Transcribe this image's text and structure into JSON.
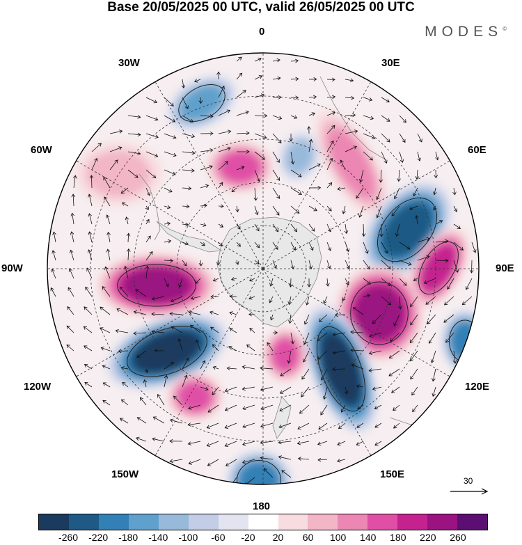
{
  "title": "Base 20/05/2025 00 UTC, valid 26/05/2025 00 UTC",
  "logo": "MODES",
  "logo_mark": "©",
  "longitude_labels": {
    "lon_0": "0",
    "lon_30e": "30E",
    "lon_60e": "60E",
    "lon_90e": "90E",
    "lon_120e": "120E",
    "lon_150e": "150E",
    "lon_180": "180",
    "lon_150w": "150W",
    "lon_120w": "120W",
    "lon_90w": "90W",
    "lon_60w": "60W",
    "lon_30w": "30W"
  },
  "reference_vector": {
    "value": "30"
  },
  "colorbar": {
    "ticks": [
      "-260",
      "-220",
      "-180",
      "-140",
      "-100",
      "-60",
      "-20",
      "20",
      "60",
      "100",
      "140",
      "180",
      "220",
      "260"
    ],
    "colors": [
      "#1b3b5e",
      "#1e5a85",
      "#3280b5",
      "#5fa0cc",
      "#97b9da",
      "#c3cde6",
      "#e4e4f1",
      "#ffffff",
      "#f8dde0",
      "#f2b6c6",
      "#ec86b3",
      "#e04fa6",
      "#c4238f",
      "#9a1380",
      "#5c0f72"
    ]
  },
  "chart_data": {
    "type": "map",
    "projection": "south polar stereographic",
    "fields": [
      "shaded anomaly (color scale)",
      "wind vectors (reference arrow 30)"
    ],
    "anomaly_centres": [
      {
        "near": "30W",
        "sign": "negative",
        "value": -140
      },
      {
        "near": "0",
        "sign": "positive",
        "value": 120
      },
      {
        "near": "15E",
        "sign": "negative",
        "value": -80
      },
      {
        "near": "30E-45E",
        "sign": "positive",
        "value": 80
      },
      {
        "near": "60E-75E",
        "sign": "negative",
        "value": -220
      },
      {
        "near": "90E",
        "sign": "positive",
        "value": 180
      },
      {
        "near": "105E-120E",
        "sign": "positive",
        "value": 220
      },
      {
        "near": "130E-140E",
        "sign": "negative",
        "value": -260
      },
      {
        "near": "120E outer",
        "sign": "negative",
        "value": -180
      },
      {
        "near": "90W-100W",
        "sign": "positive",
        "value": 200
      },
      {
        "near": "115W-125W",
        "sign": "negative",
        "value": -260
      },
      {
        "near": "135W",
        "sign": "positive",
        "value": 120
      },
      {
        "near": "180",
        "sign": "negative",
        "value": -180
      },
      {
        "near": "160E-170E",
        "sign": "positive",
        "value": 120
      },
      {
        "near": "60W",
        "sign": "positive",
        "value": 60
      }
    ]
  }
}
